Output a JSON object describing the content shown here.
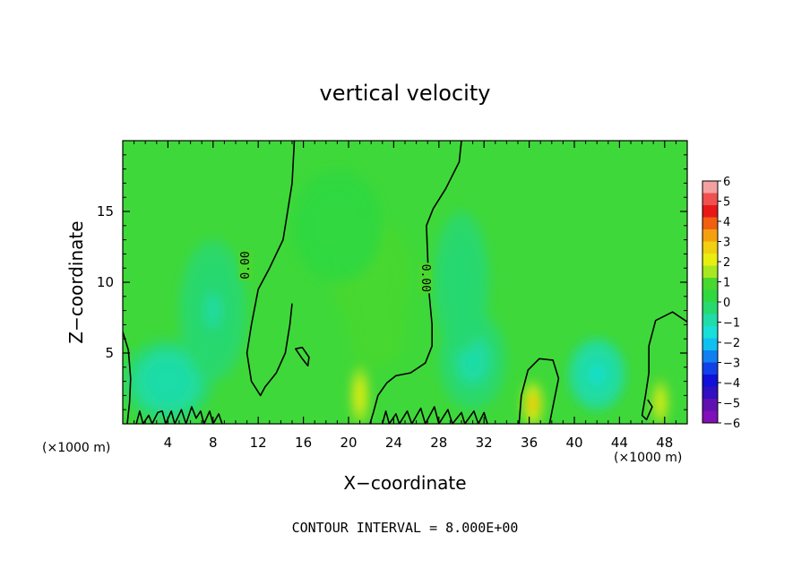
{
  "chart_data": {
    "type": "heatmap",
    "title": "vertical velocity",
    "xlabel": "X−coordinate",
    "ylabel": "Z−coordinate",
    "x_unit": "(×1000 m)",
    "z_unit": "(×1000 m)",
    "xlim": [
      0,
      50
    ],
    "ylim": [
      0,
      20
    ],
    "x_ticks": [
      4,
      8,
      12,
      16,
      20,
      24,
      28,
      32,
      36,
      40,
      44,
      48
    ],
    "y_ticks": [
      5,
      10,
      15
    ],
    "colorbar": {
      "ticks": [
        "6",
        "5",
        "4",
        "3",
        "2",
        "1",
        "0",
        "−1",
        "−2",
        "−3",
        "−4",
        "−5",
        "−6"
      ],
      "range": [
        -6,
        6
      ],
      "colors": [
        "#f4a0a0",
        "#f05050",
        "#e81818",
        "#f06010",
        "#f5a010",
        "#f0d010",
        "#e8ef10",
        "#a8e820",
        "#48d830",
        "#30d840",
        "#28d870",
        "#20dca8",
        "#18e0d8",
        "#10c0f0",
        "#1080f0",
        "#1040e8",
        "#1010d8",
        "#3010c0",
        "#6010b0",
        "#8010b8"
      ]
    },
    "field_background": "#3fd83a",
    "contour_level_label": "0.00",
    "contour_labels": [
      {
        "text": "0.00",
        "x": 10.9,
        "z": 11.2,
        "angle": -90
      },
      {
        "text": "0.00",
        "x": 26.8,
        "z": 10.3,
        "angle": 90
      }
    ],
    "features": [
      {
        "x": 21.0,
        "z": 2.0,
        "value": 2.8,
        "sx": 0.9,
        "sz": 2.6
      },
      {
        "x": 36.3,
        "z": 1.4,
        "value": 4.0,
        "sx": 0.9,
        "sz": 1.6
      },
      {
        "x": 47.6,
        "z": 1.5,
        "value": 2.8,
        "sx": 0.8,
        "sz": 2.0
      },
      {
        "x": 22.0,
        "z": 10.5,
        "value": 1.0,
        "sx": 3.5,
        "sz": 4.0
      },
      {
        "x": 22.5,
        "z": 6.5,
        "value": 0.9,
        "sx": 2.5,
        "sz": 2.5
      },
      {
        "x": 19.0,
        "z": 14.0,
        "value": 0.5,
        "sx": 4.0,
        "sz": 4.0
      },
      {
        "x": 4.0,
        "z": 3.0,
        "value": -1.0,
        "sx": 4.0,
        "sz": 3.0
      },
      {
        "x": 8.0,
        "z": 8.0,
        "value": -0.7,
        "sx": 3.0,
        "sz": 5.0
      },
      {
        "x": 42.0,
        "z": 3.5,
        "value": -1.5,
        "sx": 2.5,
        "sz": 2.5
      },
      {
        "x": 31.0,
        "z": 4.5,
        "value": -0.8,
        "sx": 3.0,
        "sz": 3.5
      },
      {
        "x": 30.0,
        "z": 10.0,
        "value": -0.5,
        "sx": 2.5,
        "sz": 5.0
      }
    ],
    "contours": [
      {
        "closed": false,
        "points": [
          [
            15.2,
            20
          ],
          [
            15.0,
            17
          ],
          [
            14.6,
            15
          ],
          [
            14.2,
            13
          ],
          [
            13.0,
            11
          ],
          [
            12.0,
            9.5
          ],
          [
            11.4,
            7.0
          ],
          [
            11.0,
            5.0
          ],
          [
            11.4,
            3.0
          ],
          [
            12.2,
            2.0
          ],
          [
            12.6,
            2.6
          ],
          [
            13.6,
            3.6
          ],
          [
            14.4,
            5.0
          ],
          [
            14.8,
            7.0
          ],
          [
            15.0,
            8.5
          ]
        ]
      },
      {
        "closed": false,
        "points": [
          [
            30.0,
            20
          ],
          [
            29.8,
            18.5
          ],
          [
            28.6,
            16.6
          ],
          [
            27.5,
            15.2
          ],
          [
            26.9,
            14.0
          ],
          [
            27.0,
            12.0
          ],
          [
            27.1,
            9.5
          ],
          [
            27.4,
            7.0
          ],
          [
            27.4,
            5.5
          ],
          [
            26.8,
            4.3
          ],
          [
            25.5,
            3.6
          ],
          [
            24.2,
            3.4
          ],
          [
            23.4,
            2.9
          ],
          [
            22.6,
            2.0
          ],
          [
            22.2,
            0.8
          ],
          [
            21.9,
            0.0
          ]
        ]
      },
      {
        "closed": true,
        "points": [
          [
            15.3,
            5.3
          ],
          [
            15.9,
            4.6
          ],
          [
            16.4,
            4.1
          ],
          [
            16.5,
            4.7
          ],
          [
            15.9,
            5.4
          ]
        ]
      },
      {
        "closed": false,
        "points": [
          [
            35.1,
            0.0
          ],
          [
            35.3,
            2.0
          ],
          [
            35.9,
            3.8
          ],
          [
            36.9,
            4.6
          ],
          [
            38.1,
            4.5
          ],
          [
            38.6,
            3.2
          ],
          [
            38.2,
            1.6
          ],
          [
            37.8,
            0.0
          ]
        ]
      },
      {
        "closed": false,
        "points": [
          [
            50.0,
            7.2
          ],
          [
            48.7,
            7.9
          ],
          [
            47.2,
            7.3
          ],
          [
            46.6,
            5.5
          ],
          [
            46.6,
            3.6
          ],
          [
            46.3,
            2.0
          ],
          [
            46.0,
            0.6
          ],
          [
            46.4,
            0.3
          ],
          [
            46.9,
            1.2
          ],
          [
            46.5,
            1.7
          ]
        ]
      },
      {
        "closed": false,
        "points": [
          [
            0.0,
            6.5
          ],
          [
            0.5,
            5.2
          ],
          [
            0.7,
            3.2
          ],
          [
            0.6,
            1.5
          ],
          [
            0.4,
            0.0
          ]
        ]
      },
      {
        "closed": false,
        "points": [
          [
            1.2,
            0.0
          ],
          [
            1.5,
            0.9
          ],
          [
            1.8,
            0.0
          ],
          [
            2.3,
            0.6
          ],
          [
            2.6,
            0.0
          ],
          [
            3.1,
            0.8
          ],
          [
            3.5,
            0.9
          ],
          [
            3.8,
            0.0
          ],
          [
            4.3,
            0.9
          ],
          [
            4.6,
            0.0
          ],
          [
            5.2,
            1.0
          ],
          [
            5.6,
            0.0
          ],
          [
            6.1,
            1.2
          ],
          [
            6.5,
            0.4
          ],
          [
            6.9,
            0.9
          ],
          [
            7.2,
            0.0
          ],
          [
            7.7,
            0.9
          ],
          [
            8.0,
            0.0
          ],
          [
            8.5,
            0.7
          ],
          [
            8.8,
            0.0
          ]
        ]
      },
      {
        "closed": false,
        "points": [
          [
            23.0,
            0.0
          ],
          [
            23.3,
            0.9
          ],
          [
            23.6,
            0.0
          ],
          [
            24.2,
            0.7
          ],
          [
            24.5,
            0.0
          ],
          [
            25.2,
            0.9
          ],
          [
            25.6,
            0.0
          ],
          [
            26.4,
            1.1
          ],
          [
            26.8,
            0.0
          ],
          [
            27.6,
            1.2
          ],
          [
            28.0,
            0.0
          ],
          [
            28.8,
            1.0
          ],
          [
            29.2,
            0.0
          ],
          [
            30.0,
            0.8
          ],
          [
            30.3,
            0.0
          ],
          [
            31.1,
            0.9
          ],
          [
            31.5,
            0.0
          ],
          [
            32.0,
            0.8
          ],
          [
            32.3,
            0.0
          ]
        ]
      }
    ],
    "footer": "CONTOUR INTERVAL = 8.000E+00"
  }
}
